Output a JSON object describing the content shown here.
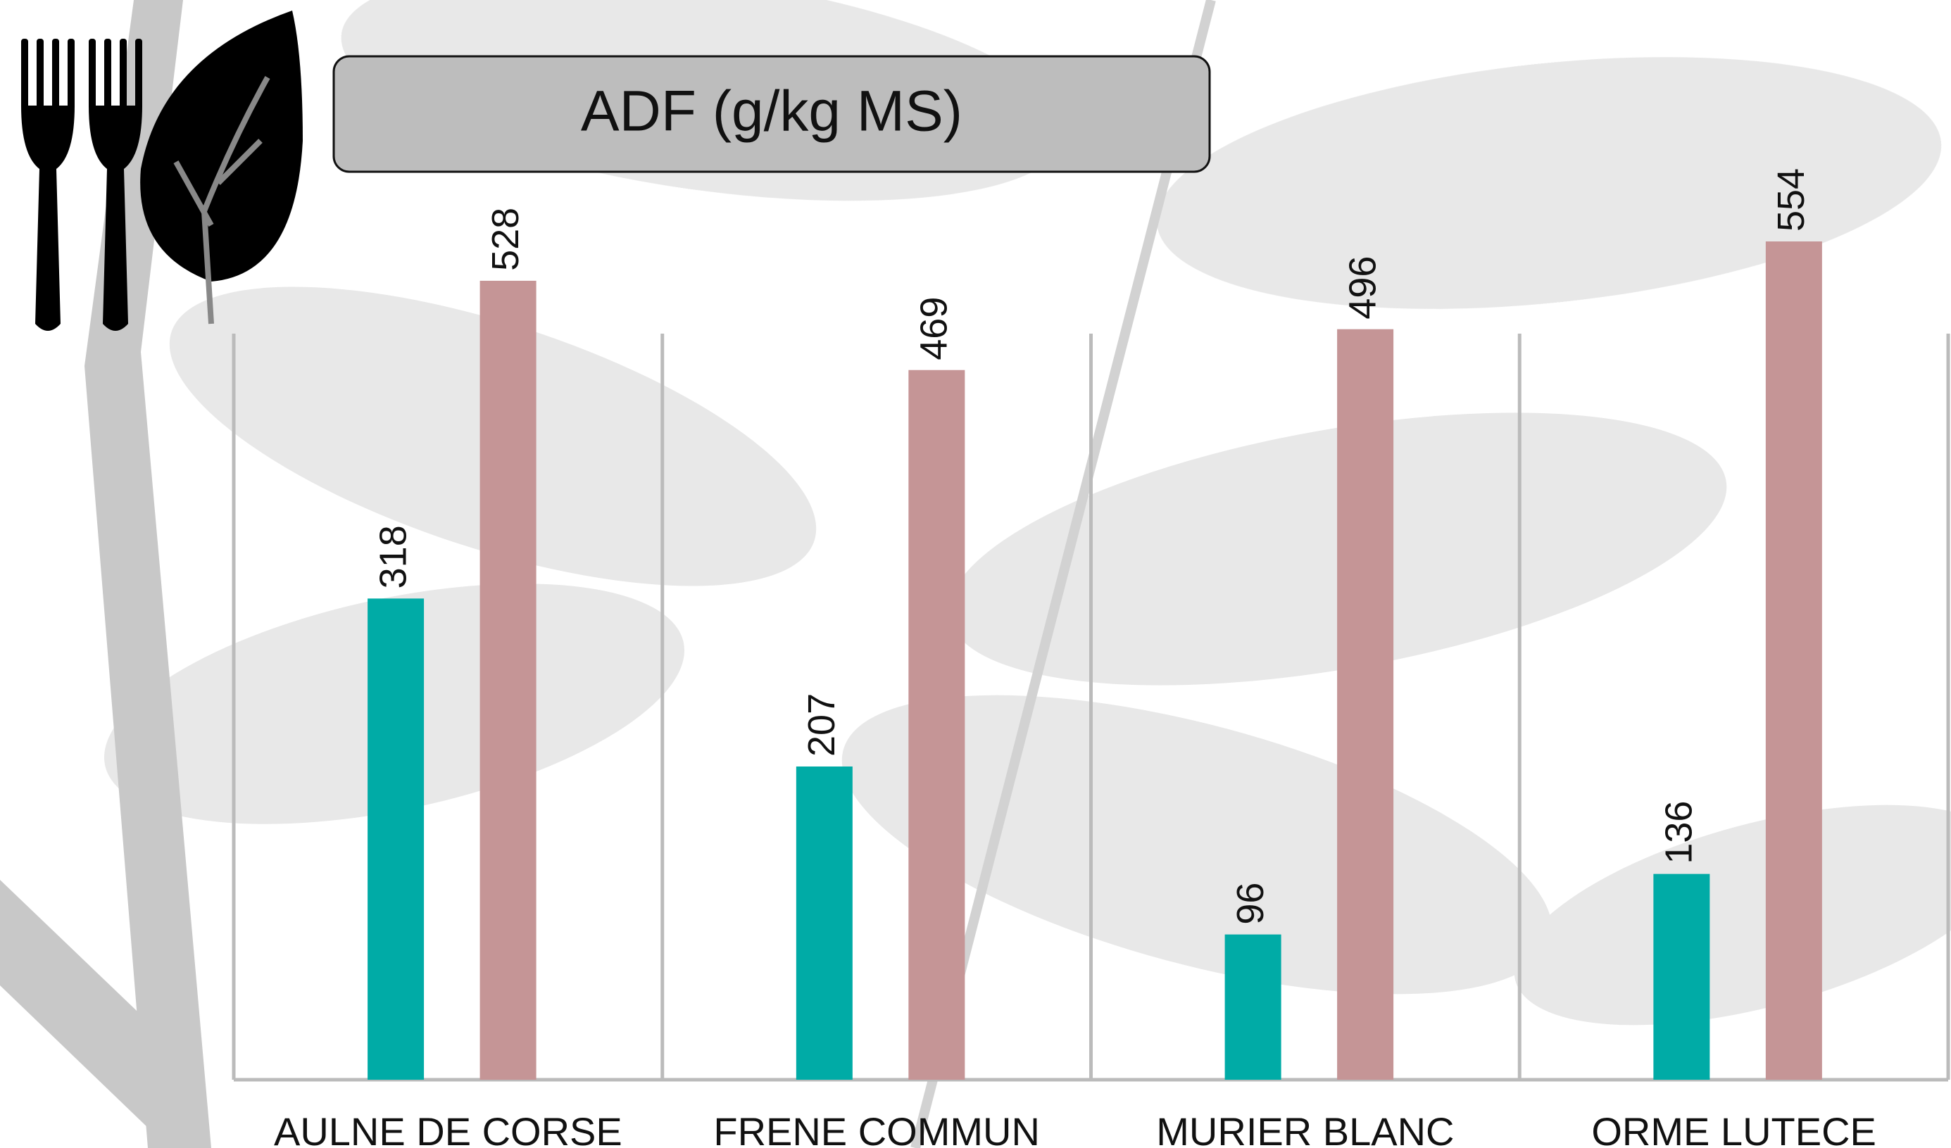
{
  "chart_data": {
    "type": "bar",
    "title": "ADF (g/kg MS)",
    "categories": [
      "AULNE DE CORSE",
      "FRENE COMMUN",
      "MURIER BLANC",
      "ORME LUTECE"
    ],
    "series": [
      {
        "color": "#00aba6",
        "values": [
          318,
          207,
          96,
          136
        ]
      },
      {
        "color": "#c59596",
        "values": [
          528,
          469,
          496,
          554
        ]
      }
    ]
  }
}
